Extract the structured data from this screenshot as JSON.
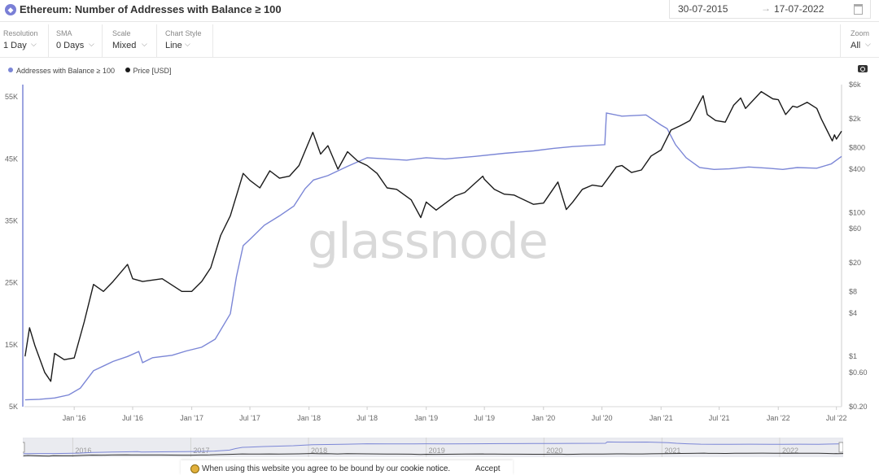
{
  "header": {
    "title": "Ethereum: Number of Addresses with Balance ≥ 100",
    "date_from": "30-07-2015",
    "date_to": "17-07-2022",
    "date_arrow": "→"
  },
  "controls": [
    {
      "label": "Resolution",
      "value": "1 Day"
    },
    {
      "label": "SMA",
      "value": "0 Days"
    },
    {
      "label": "Scale",
      "value": "Mixed"
    },
    {
      "label": "Chart Style",
      "value": "Line"
    }
  ],
  "zoom": {
    "label": "Zoom",
    "value": "All"
  },
  "legend": [
    "Addresses with Balance ≥ 100",
    "Price [USD]"
  ],
  "watermark": "glassnode",
  "cookie": {
    "text": "When using this website you agree to be bound by our",
    "link": "cookie notice.",
    "accept": "Accept"
  },
  "navigator_years": [
    "2016",
    "2017",
    "2018",
    "2019",
    "2020",
    "2021",
    "2022"
  ],
  "colors": {
    "addresses": "#7b86d6",
    "price": "#1a1a1a",
    "axis": "#7b86d6"
  },
  "icons": {
    "title": "ethereum-icon",
    "calendar": "calendar-icon",
    "camera": "camera-icon",
    "cookie": "cookie-icon"
  },
  "chart_data": {
    "type": "line",
    "x_type": "date",
    "x_ticks": [
      "Jan '16",
      "Jul '16",
      "Jan '17",
      "Jul '17",
      "Jan '18",
      "Jul '18",
      "Jan '19",
      "Jul '19",
      "Jan '20",
      "Jul '20",
      "Jan '21",
      "Jul '21",
      "Jan '22",
      "Jul '22"
    ],
    "x_tick_dates": [
      "2016-01-01",
      "2016-07-01",
      "2017-01-01",
      "2017-07-01",
      "2018-01-01",
      "2018-07-01",
      "2019-01-01",
      "2019-07-01",
      "2020-01-01",
      "2020-07-01",
      "2021-01-01",
      "2021-07-01",
      "2022-01-01",
      "2022-07-01"
    ],
    "xlim": [
      "2015-07-30",
      "2022-07-17"
    ],
    "y_left": {
      "ticks": [
        "5K",
        "15K",
        "25K",
        "35K",
        "45K",
        "55K"
      ],
      "tick_values": [
        5000,
        15000,
        25000,
        35000,
        45000,
        55000
      ],
      "lim": [
        5000,
        57000
      ],
      "scale": "linear"
    },
    "y_right": {
      "ticks": [
        "$0.20",
        "$0.60",
        "$1",
        "$4",
        "$8",
        "$20",
        "$60",
        "$100",
        "$400",
        "$800",
        "$2k",
        "$6k"
      ],
      "tick_values": [
        0.2,
        0.6,
        1,
        4,
        8,
        20,
        60,
        100,
        400,
        800,
        2000,
        6000
      ],
      "lim": [
        0.2,
        6000
      ],
      "scale": "log"
    },
    "grid": false,
    "legend_position": "top-left",
    "series": [
      {
        "name": "Addresses with Balance ≥ 100",
        "axis": "left",
        "points": [
          [
            "2015-08-01",
            6100
          ],
          [
            "2015-09-15",
            6200
          ],
          [
            "2015-11-01",
            6400
          ],
          [
            "2015-12-15",
            6900
          ],
          [
            "2016-01-20",
            8000
          ],
          [
            "2016-03-01",
            10800
          ],
          [
            "2016-05-01",
            12300
          ],
          [
            "2016-06-15",
            13100
          ],
          [
            "2016-07-20",
            13900
          ],
          [
            "2016-08-01",
            12100
          ],
          [
            "2016-09-01",
            12900
          ],
          [
            "2016-11-01",
            13300
          ],
          [
            "2016-12-15",
            14000
          ],
          [
            "2017-02-01",
            14600
          ],
          [
            "2017-03-15",
            15900
          ],
          [
            "2017-05-01",
            20000
          ],
          [
            "2017-05-20",
            26000
          ],
          [
            "2017-06-10",
            31000
          ],
          [
            "2017-07-01",
            32000
          ],
          [
            "2017-08-15",
            34300
          ],
          [
            "2017-10-01",
            35800
          ],
          [
            "2017-11-15",
            37400
          ],
          [
            "2017-12-20",
            40200
          ],
          [
            "2018-01-15",
            41600
          ],
          [
            "2018-03-01",
            42300
          ],
          [
            "2018-05-01",
            43800
          ],
          [
            "2018-07-01",
            45200
          ],
          [
            "2018-09-01",
            45000
          ],
          [
            "2018-11-01",
            44800
          ],
          [
            "2019-01-01",
            45200
          ],
          [
            "2019-03-01",
            45000
          ],
          [
            "2019-06-01",
            45400
          ],
          [
            "2019-09-01",
            45900
          ],
          [
            "2019-12-01",
            46300
          ],
          [
            "2020-02-01",
            46700
          ],
          [
            "2020-04-01",
            47000
          ],
          [
            "2020-07-10",
            47300
          ],
          [
            "2020-07-15",
            52400
          ],
          [
            "2020-09-01",
            51900
          ],
          [
            "2020-11-15",
            52100
          ],
          [
            "2020-12-31",
            50500
          ],
          [
            "2021-01-20",
            49900
          ],
          [
            "2021-02-15",
            47300
          ],
          [
            "2021-03-20",
            45200
          ],
          [
            "2021-05-01",
            43600
          ],
          [
            "2021-06-15",
            43300
          ],
          [
            "2021-08-01",
            43400
          ],
          [
            "2021-10-01",
            43700
          ],
          [
            "2021-12-01",
            43500
          ],
          [
            "2022-01-15",
            43300
          ],
          [
            "2022-03-01",
            43600
          ],
          [
            "2022-05-01",
            43500
          ],
          [
            "2022-06-15",
            44200
          ],
          [
            "2022-07-17",
            45400
          ]
        ]
      },
      {
        "name": "Price [USD]",
        "axis": "right",
        "points": [
          [
            "2015-08-01",
            1.0
          ],
          [
            "2015-08-15",
            2.5
          ],
          [
            "2015-09-01",
            1.4
          ],
          [
            "2015-10-01",
            0.6
          ],
          [
            "2015-10-20",
            0.45
          ],
          [
            "2015-11-01",
            1.1
          ],
          [
            "2015-12-01",
            0.9
          ],
          [
            "2016-01-01",
            0.95
          ],
          [
            "2016-02-01",
            3.0
          ],
          [
            "2016-03-01",
            10.0
          ],
          [
            "2016-04-01",
            8.0
          ],
          [
            "2016-05-01",
            11.0
          ],
          [
            "2016-06-15",
            19.0
          ],
          [
            "2016-07-01",
            12.0
          ],
          [
            "2016-08-01",
            11.0
          ],
          [
            "2016-10-01",
            12.0
          ],
          [
            "2016-12-01",
            8.0
          ],
          [
            "2017-01-01",
            8.0
          ],
          [
            "2017-02-01",
            11.0
          ],
          [
            "2017-03-01",
            17.0
          ],
          [
            "2017-04-01",
            48.0
          ],
          [
            "2017-05-01",
            90.0
          ],
          [
            "2017-06-10",
            350.0
          ],
          [
            "2017-07-01",
            280.0
          ],
          [
            "2017-08-01",
            220.0
          ],
          [
            "2017-09-01",
            380.0
          ],
          [
            "2017-10-01",
            300.0
          ],
          [
            "2017-11-01",
            320.0
          ],
          [
            "2017-12-01",
            450.0
          ],
          [
            "2018-01-13",
            1300.0
          ],
          [
            "2018-02-06",
            650.0
          ],
          [
            "2018-03-01",
            850.0
          ],
          [
            "2018-04-01",
            400.0
          ],
          [
            "2018-05-01",
            700.0
          ],
          [
            "2018-06-01",
            520.0
          ],
          [
            "2018-07-01",
            450.0
          ],
          [
            "2018-08-01",
            350.0
          ],
          [
            "2018-09-01",
            220.0
          ],
          [
            "2018-10-01",
            210.0
          ],
          [
            "2018-11-15",
            150.0
          ],
          [
            "2018-12-15",
            85.0
          ],
          [
            "2019-01-01",
            140.0
          ],
          [
            "2019-02-01",
            108.0
          ],
          [
            "2019-04-01",
            170.0
          ],
          [
            "2019-05-01",
            190.0
          ],
          [
            "2019-06-26",
            320.0
          ],
          [
            "2019-07-01",
            290.0
          ],
          [
            "2019-08-01",
            210.0
          ],
          [
            "2019-09-01",
            180.0
          ],
          [
            "2019-10-01",
            175.0
          ],
          [
            "2019-12-01",
            130.0
          ],
          [
            "2020-01-01",
            135.0
          ],
          [
            "2020-02-15",
            265.0
          ],
          [
            "2020-03-12",
            110.0
          ],
          [
            "2020-04-01",
            140.0
          ],
          [
            "2020-05-01",
            210.0
          ],
          [
            "2020-06-01",
            240.0
          ],
          [
            "2020-07-01",
            230.0
          ],
          [
            "2020-08-15",
            430.0
          ],
          [
            "2020-09-01",
            450.0
          ],
          [
            "2020-10-01",
            360.0
          ],
          [
            "2020-11-01",
            390.0
          ],
          [
            "2020-12-01",
            610.0
          ],
          [
            "2021-01-01",
            740.0
          ],
          [
            "2021-02-01",
            1400.0
          ],
          [
            "2021-03-01",
            1600.0
          ],
          [
            "2021-04-01",
            1900.0
          ],
          [
            "2021-05-12",
            4200.0
          ],
          [
            "2021-05-25",
            2300.0
          ],
          [
            "2021-06-20",
            1900.0
          ],
          [
            "2021-07-20",
            1800.0
          ],
          [
            "2021-08-15",
            3100.0
          ],
          [
            "2021-09-06",
            3900.0
          ],
          [
            "2021-09-21",
            2800.0
          ],
          [
            "2021-11-09",
            4800.0
          ],
          [
            "2021-12-15",
            3800.0
          ],
          [
            "2022-01-01",
            3700.0
          ],
          [
            "2022-01-24",
            2300.0
          ],
          [
            "2022-02-15",
            3000.0
          ],
          [
            "2022-03-01",
            2900.0
          ],
          [
            "2022-04-01",
            3400.0
          ],
          [
            "2022-05-01",
            2800.0
          ],
          [
            "2022-05-15",
            2000.0
          ],
          [
            "2022-06-18",
            990.0
          ],
          [
            "2022-06-25",
            1200.0
          ],
          [
            "2022-07-01",
            1050.0
          ],
          [
            "2022-07-17",
            1350.0
          ]
        ]
      }
    ]
  }
}
